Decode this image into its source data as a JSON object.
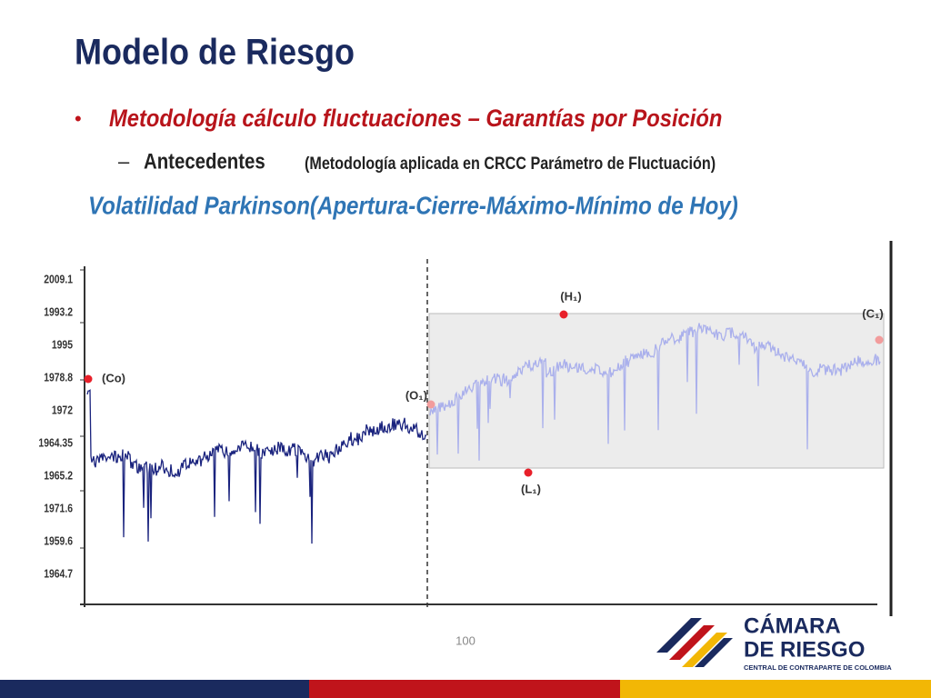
{
  "header": {
    "title": "Modelo de Riesgo"
  },
  "bullet": {
    "text": "Metodología cálculo fluctuaciones – Garantías por Posición",
    "sub_bold": "Antecedentes",
    "sub_note": "(Metodología aplicada en CRCC Parámetro de Fluctuación)"
  },
  "heading": "Volatilidad Parkinson(Apertura-Cierre-Máximo-Mínimo de Hoy)",
  "figure": {
    "axis_labels": [
      "2009.1",
      "1993.2",
      "1995",
      "1978.8",
      "1972",
      "1964.35",
      "1965.2",
      "1971.6",
      "1959.6",
      "1964.7"
    ],
    "points": {
      "open0": "(Co)",
      "open1": "(O₁)",
      "high1": "(H₁)",
      "low1": "(L₁)",
      "close1": "(C₁)"
    }
  },
  "page_number": "100",
  "logo": {
    "line1": "CÁMARA",
    "line2": "DE RIESGO",
    "tagline": "CENTRAL DE CONTRAPARTE DE COLOMBIA"
  }
}
